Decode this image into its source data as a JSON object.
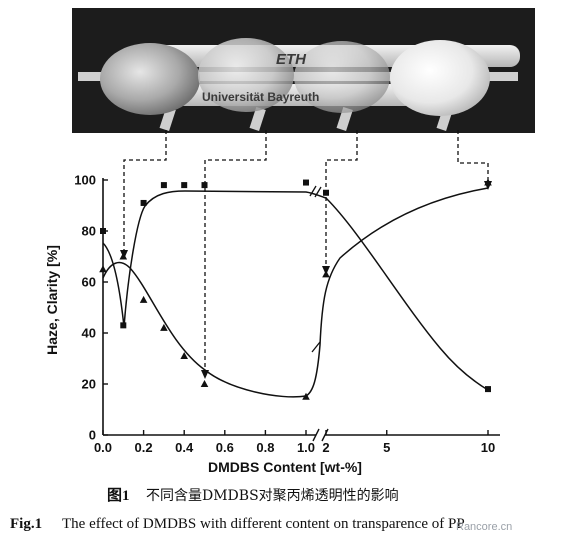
{
  "photo": {
    "logo_text": "ETH",
    "sample_text": "Universität Bayreuth"
  },
  "chart_data": {
    "type": "scatter",
    "xlabel": "DMDBS Content [wt-%]",
    "ylabel": "Haze, Clarity [%]",
    "x_ticks": [
      "0.0",
      "0.2",
      "0.4",
      "0.6",
      "0.8",
      "1.0",
      "2",
      "5",
      "10"
    ],
    "y_ticks": [
      "0",
      "20",
      "40",
      "60",
      "80",
      "100"
    ],
    "ylim": [
      0,
      100
    ],
    "x_axis_break": "between 1.0 and 2",
    "grid": false,
    "series": [
      {
        "marker": "square",
        "x": [
          0.0,
          0.1,
          0.2,
          0.3,
          0.4,
          0.5,
          1.0,
          2,
          10
        ],
        "y": [
          80,
          43,
          91,
          98,
          98,
          98,
          99,
          95,
          18
        ]
      },
      {
        "marker": "triangle",
        "x": [
          0.0,
          0.1,
          0.2,
          0.3,
          0.4,
          0.5,
          1.0,
          2,
          10
        ],
        "y": [
          65,
          70,
          53,
          42,
          31,
          20,
          15,
          63,
          99
        ]
      }
    ]
  },
  "caption": {
    "fig_label_cn": "图1",
    "title_cn": "不同含量DMDBS对聚丙烯透明性的影响",
    "fig_label_en": "Fig.1",
    "title_en": "The effect of DMDBS with different content on transparence of PP"
  },
  "watermark": "Rancore.cn",
  "colors": {
    "photo_background": "#1c1c1c",
    "ink": "#111111"
  }
}
